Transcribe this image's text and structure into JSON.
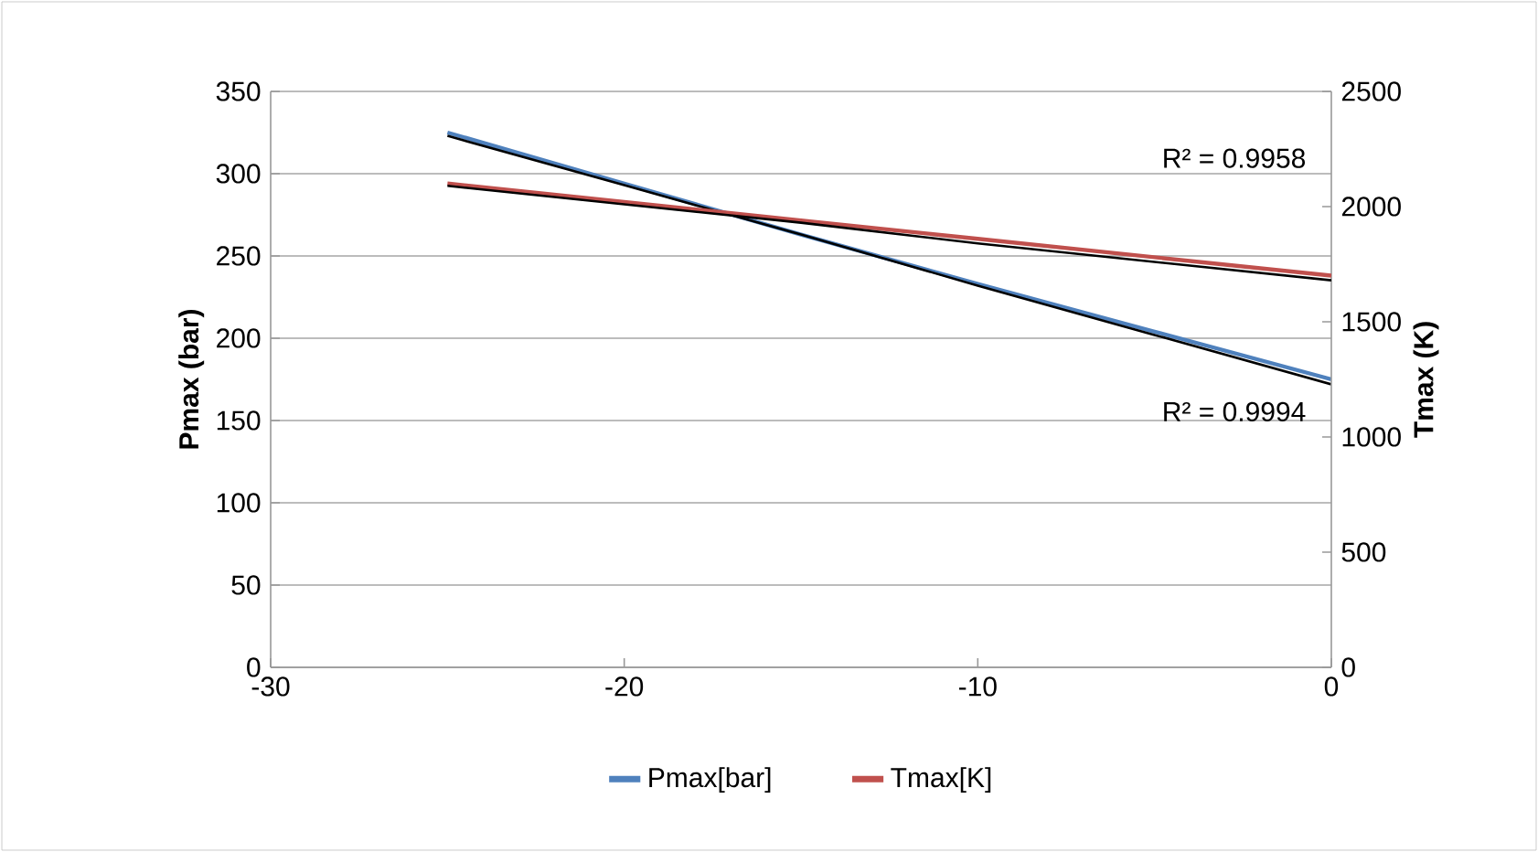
{
  "chart_data": {
    "type": "line",
    "x": [
      -25,
      -20,
      -15,
      -10,
      -5,
      0
    ],
    "series": [
      {
        "name": "Pmax[bar]",
        "color": "#4f81bd",
        "values": [
          325,
          294,
          263,
          233,
          204,
          175
        ]
      },
      {
        "name": "Tmax[K]",
        "color": "#c0504d",
        "axis": "y2",
        "values": [
          2100,
          2020,
          1940,
          1860,
          1780,
          1700
        ]
      },
      {
        "type": "line",
        "color": "#000000",
        "values": [
          323,
          293,
          263,
          232,
          202,
          172
        ]
      },
      {
        "type": "line",
        "color": "#000000",
        "axis": "y2",
        "values": [
          2090,
          2010,
          1930,
          1840,
          1760,
          1680
        ]
      }
    ],
    "xlim": [
      -30,
      0
    ],
    "xticks": [
      -30,
      -20,
      -10,
      0
    ],
    "ylim": [
      0,
      350
    ],
    "yticks": [
      0,
      50,
      100,
      150,
      200,
      250,
      300,
      350
    ],
    "y2lim": [
      0,
      2500
    ],
    "y2ticks": [
      0,
      500,
      1000,
      1500,
      2000,
      2500
    ],
    "ylabel": "Pmax (bar)",
    "y2label": "Tmax (K)",
    "annotations": [
      "R² = 0.9958",
      "R² = 0.9994"
    ],
    "grid": "y",
    "legend": "bottom",
    "marker": "none"
  }
}
